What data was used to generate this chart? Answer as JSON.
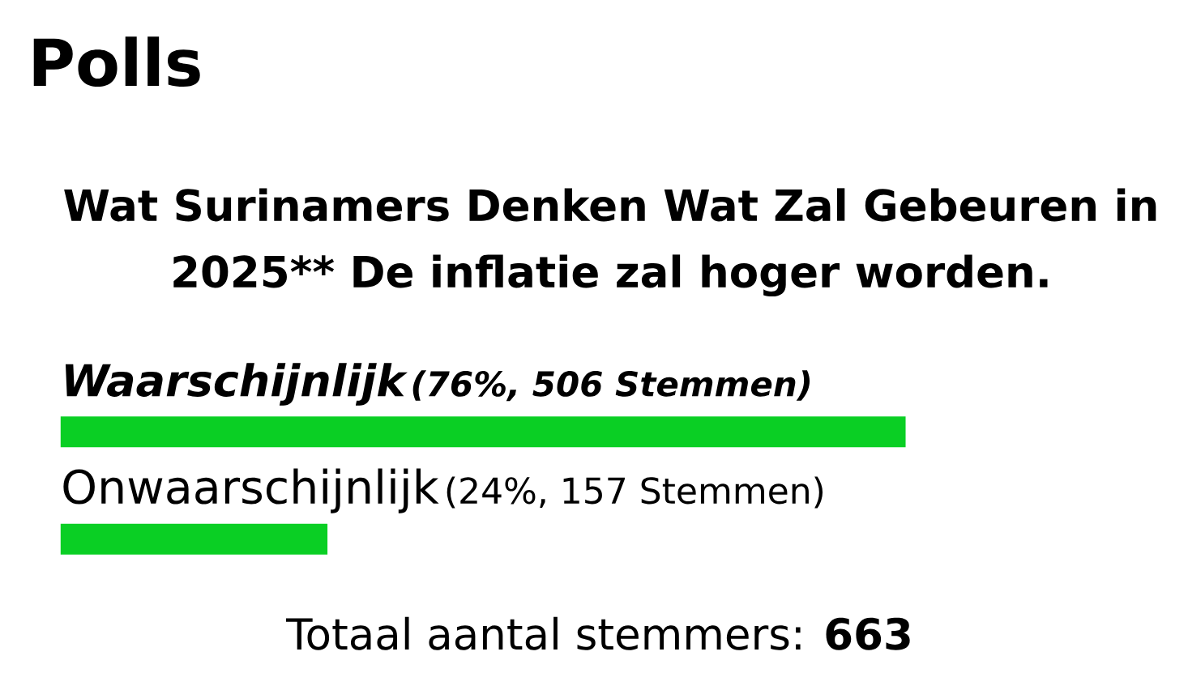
{
  "chart_data": {
    "type": "bar",
    "orientation": "horizontal",
    "title": "Polls",
    "subtitle": "Wat Surinamers Denken Wat Zal Gebeuren in 2025** De inflatie zal hoger worden.",
    "categories": [
      "Waarschijnlijk",
      "Onwaarschijnlijk"
    ],
    "values": [
      76,
      24
    ],
    "value_labels": [
      "(76%, 506 Stemmen)",
      "(24%, 157 Stemmen)"
    ],
    "color": "#0acf24",
    "tick_labels": "y",
    "annotations": [
      "Totaal aantal stemmers: **663**"
    ]
  }
}
